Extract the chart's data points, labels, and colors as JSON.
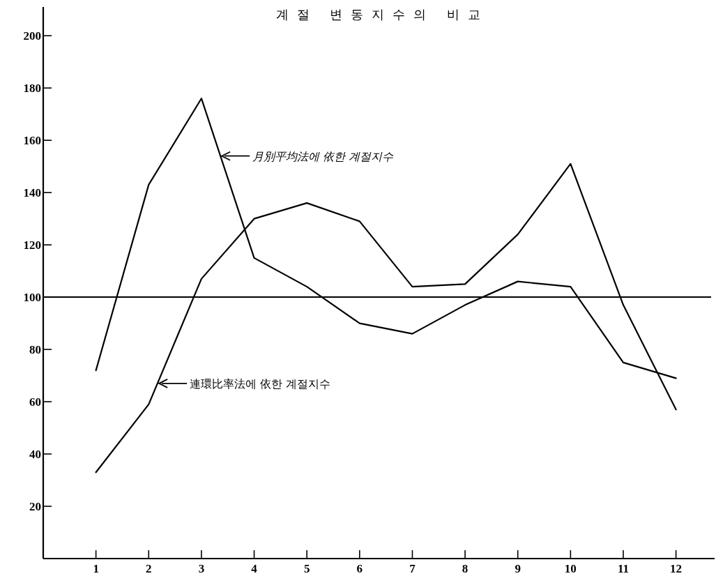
{
  "chart_data": {
    "type": "line",
    "title": "계절 변동지수의 비교",
    "x": [
      1,
      2,
      3,
      4,
      5,
      6,
      7,
      8,
      9,
      10,
      11,
      12
    ],
    "series": [
      {
        "color": "#000000",
        "values": [
          72,
          143,
          176,
          115,
          104,
          90,
          86,
          97,
          106,
          104,
          75,
          69
        ]
      },
      {
        "color": "#000000",
        "values": [
          33,
          59,
          107,
          130,
          136,
          129,
          104,
          105,
          124,
          151,
          97,
          57
        ]
      }
    ],
    "xlim": [
      0,
      12.6
    ],
    "xticks": [
      1,
      2,
      3,
      4,
      5,
      6,
      7,
      8,
      9,
      10,
      11,
      12
    ],
    "ylim": [
      0,
      211
    ],
    "yticks": [
      20,
      40,
      60,
      80,
      100,
      120,
      140,
      160,
      180,
      200
    ],
    "ref_lines": [
      {
        "axis": "y",
        "value": 100,
        "color": "#000000"
      }
    ],
    "annotations": [
      {
        "text": "月別平均法에 依한 계절지수",
        "x": 3.36,
        "y": 154
      },
      {
        "text": "連環比率法에 依한 계절지수",
        "x": 2.17,
        "y": 67
      }
    ],
    "grid": false,
    "marker": "none",
    "line_style": "solid"
  }
}
